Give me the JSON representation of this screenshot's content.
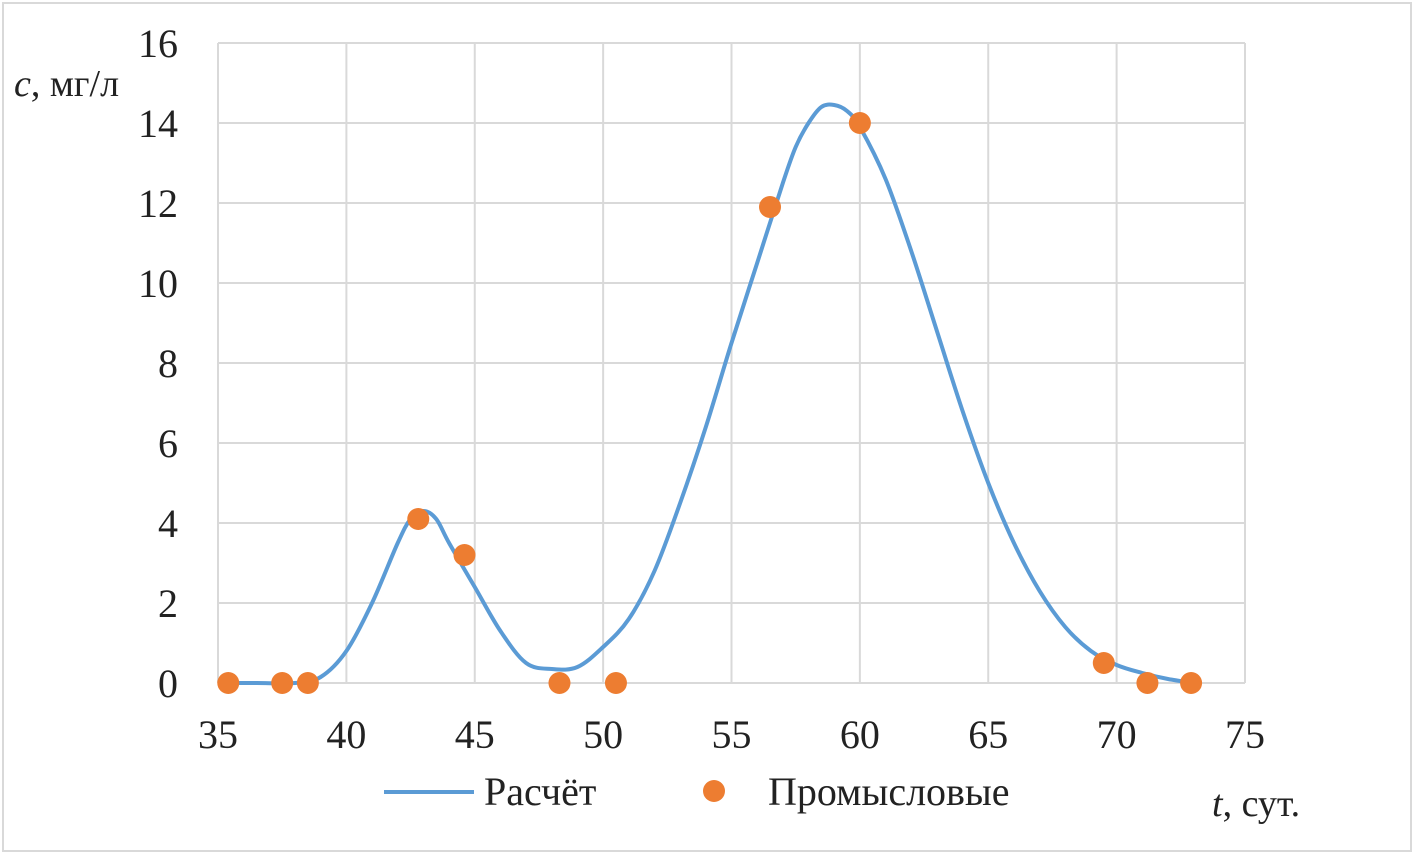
{
  "chart_data": {
    "type": "line",
    "xlabel_var": "t",
    "xlabel_unit": ", сут.",
    "ylabel_var": "c",
    "ylabel_unit": ", мг/л",
    "xlim": [
      35,
      75
    ],
    "ylim": [
      0,
      16
    ],
    "xticks": [
      35,
      40,
      45,
      50,
      55,
      60,
      65,
      70,
      75
    ],
    "yticks": [
      0,
      2,
      4,
      6,
      8,
      10,
      12,
      14,
      16
    ],
    "grid": true,
    "legend_position": "bottom",
    "series": [
      {
        "name": "Расчёт",
        "kind": "line",
        "color": "#5B9BD5",
        "x": [
          35,
          36.5,
          38,
          39,
          40,
          41,
          42,
          42.5,
          43,
          43.5,
          44,
          45,
          46,
          47,
          48,
          49,
          50,
          51,
          52,
          53,
          54,
          55,
          56,
          57,
          57.5,
          58,
          58.5,
          59,
          59.5,
          60,
          61,
          62,
          63,
          64,
          65,
          66,
          67,
          68,
          69,
          70,
          71,
          72,
          73
        ],
        "y": [
          0,
          0,
          0,
          0.15,
          0.8,
          2.0,
          3.5,
          4.1,
          4.3,
          4.1,
          3.5,
          2.4,
          1.3,
          0.5,
          0.35,
          0.4,
          0.9,
          1.6,
          2.8,
          4.5,
          6.4,
          8.5,
          10.5,
          12.5,
          13.4,
          14.0,
          14.4,
          14.45,
          14.3,
          13.9,
          12.6,
          10.8,
          8.8,
          6.8,
          5.0,
          3.5,
          2.3,
          1.4,
          0.8,
          0.45,
          0.25,
          0.1,
          0
        ]
      },
      {
        "name": "Промысловые",
        "kind": "scatter",
        "color": "#ED7D31",
        "x": [
          35.4,
          37.5,
          38.5,
          42.8,
          44.6,
          48.3,
          50.5,
          56.5,
          60,
          69.5,
          71.2,
          72.9
        ],
        "y": [
          0,
          0,
          0,
          4.1,
          3.2,
          0,
          0,
          11.9,
          14,
          0.5,
          0,
          0
        ]
      }
    ]
  }
}
